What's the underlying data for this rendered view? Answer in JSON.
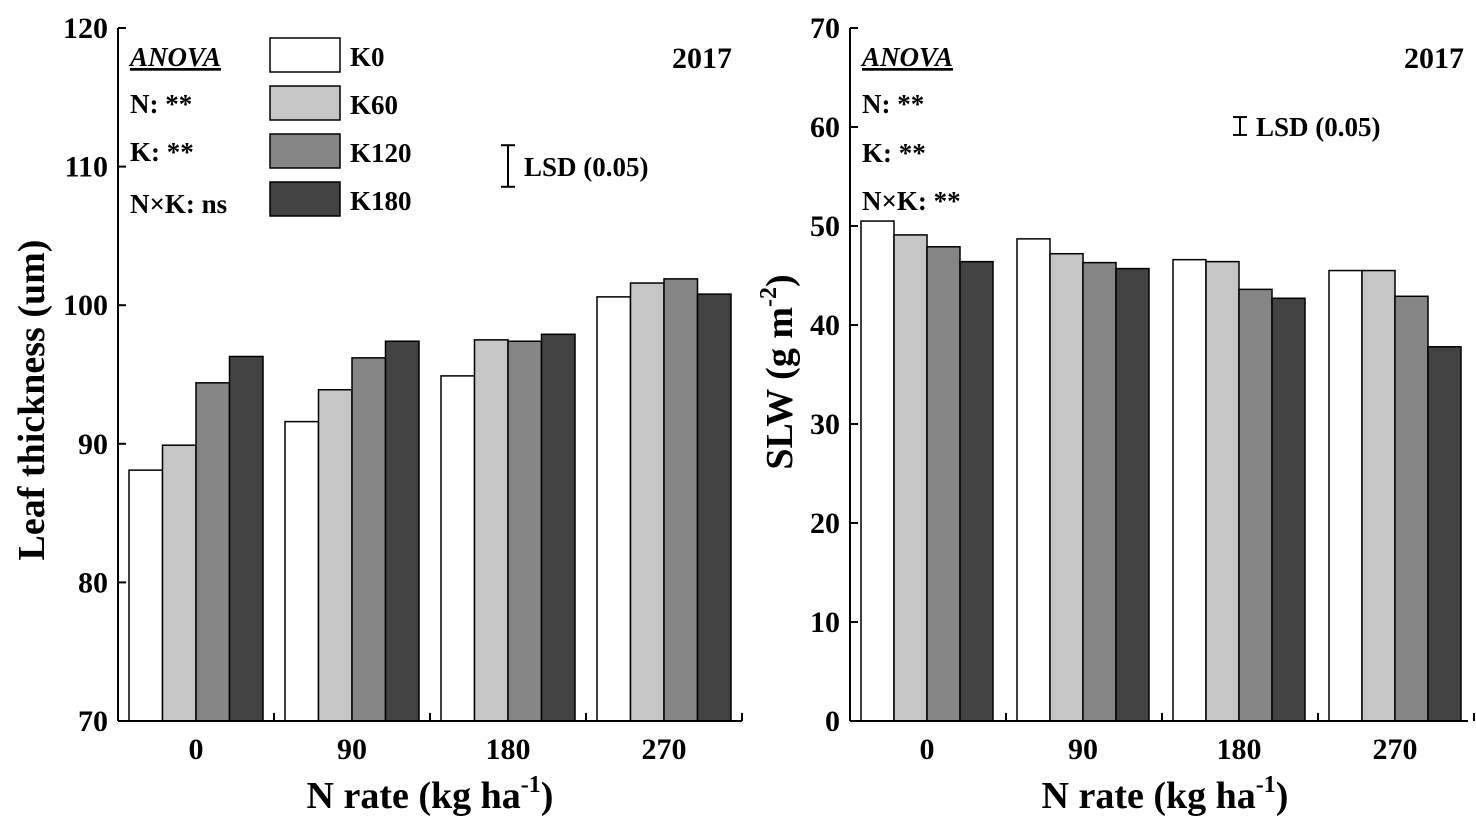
{
  "colors": {
    "K0": "#ffffff",
    "K60": "#c6c6c6",
    "K120": "#858585",
    "K180": "#424242"
  },
  "chart_data": [
    {
      "type": "bar",
      "categories": [
        "0",
        "90",
        "180",
        "270"
      ],
      "series": [
        {
          "name": "K0",
          "values": [
            88.1,
            91.6,
            94.9,
            100.6
          ]
        },
        {
          "name": "K60",
          "values": [
            89.9,
            93.9,
            97.5,
            101.6
          ]
        },
        {
          "name": "K120",
          "values": [
            94.4,
            96.2,
            97.4,
            101.9
          ]
        },
        {
          "name": "K180",
          "values": [
            96.3,
            97.4,
            97.9,
            100.8
          ]
        }
      ],
      "ylim": [
        70,
        120
      ],
      "yticks": [
        70,
        80,
        90,
        100,
        110,
        120
      ],
      "ylabel": "Leaf thickness (um)",
      "xlabel_main": "N rate (kg ha",
      "xlabel_sup": "-1",
      "xlabel_end": ")",
      "year": "2017",
      "anova": {
        "title": "ANOVA",
        "lines": [
          "N: **",
          "K: **",
          "N×K: ns"
        ]
      },
      "lsd_label": "LSD (0.05)",
      "lsd_value": 3.0,
      "legend": [
        "K0",
        "K60",
        "K120",
        "K180"
      ]
    },
    {
      "type": "bar",
      "categories": [
        "0",
        "90",
        "180",
        "270"
      ],
      "series": [
        {
          "name": "K0",
          "values": [
            50.5,
            48.7,
            46.6,
            45.5
          ]
        },
        {
          "name": "K60",
          "values": [
            49.1,
            47.2,
            46.4,
            45.5
          ]
        },
        {
          "name": "K120",
          "values": [
            47.9,
            46.3,
            43.6,
            42.9
          ]
        },
        {
          "name": "K180",
          "values": [
            46.4,
            45.7,
            42.7,
            37.8
          ]
        }
      ],
      "ylim": [
        0,
        70
      ],
      "yticks": [
        0,
        10,
        20,
        30,
        40,
        50,
        60,
        70
      ],
      "ylabel_main": "SLW (g m",
      "ylabel_sup": "-2",
      "ylabel_end": ")",
      "xlabel_main": "N rate (kg ha",
      "xlabel_sup": "-1",
      "xlabel_end": ")",
      "year": "2017",
      "anova": {
        "title": "ANOVA",
        "lines": [
          "N: **",
          "K: **",
          "N×K: **"
        ]
      },
      "lsd_label": "LSD (0.05)",
      "lsd_value": 1.8
    }
  ]
}
